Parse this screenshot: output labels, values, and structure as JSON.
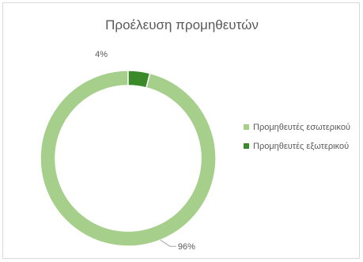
{
  "chart_data": {
    "type": "pie",
    "subtype": "doughnut",
    "title": "Προέλευση προμηθευτών",
    "legend_position": "right",
    "series": [
      {
        "values": [
          96,
          4
        ],
        "labels": [
          "96%",
          "4%"
        ]
      }
    ],
    "categories": [
      "Προμηθευτές εσωτερικού",
      "Προμηθευτές εξωτερικού"
    ],
    "colors": [
      "#a6cf8b",
      "#3a8a2a"
    ]
  },
  "legend": {
    "items": [
      {
        "label": "Προμηθευτές εσωτερικού",
        "color": "#a6cf8b"
      },
      {
        "label": "Προμηθευτές εξωτερικού",
        "color": "#3a8a2a"
      }
    ]
  }
}
